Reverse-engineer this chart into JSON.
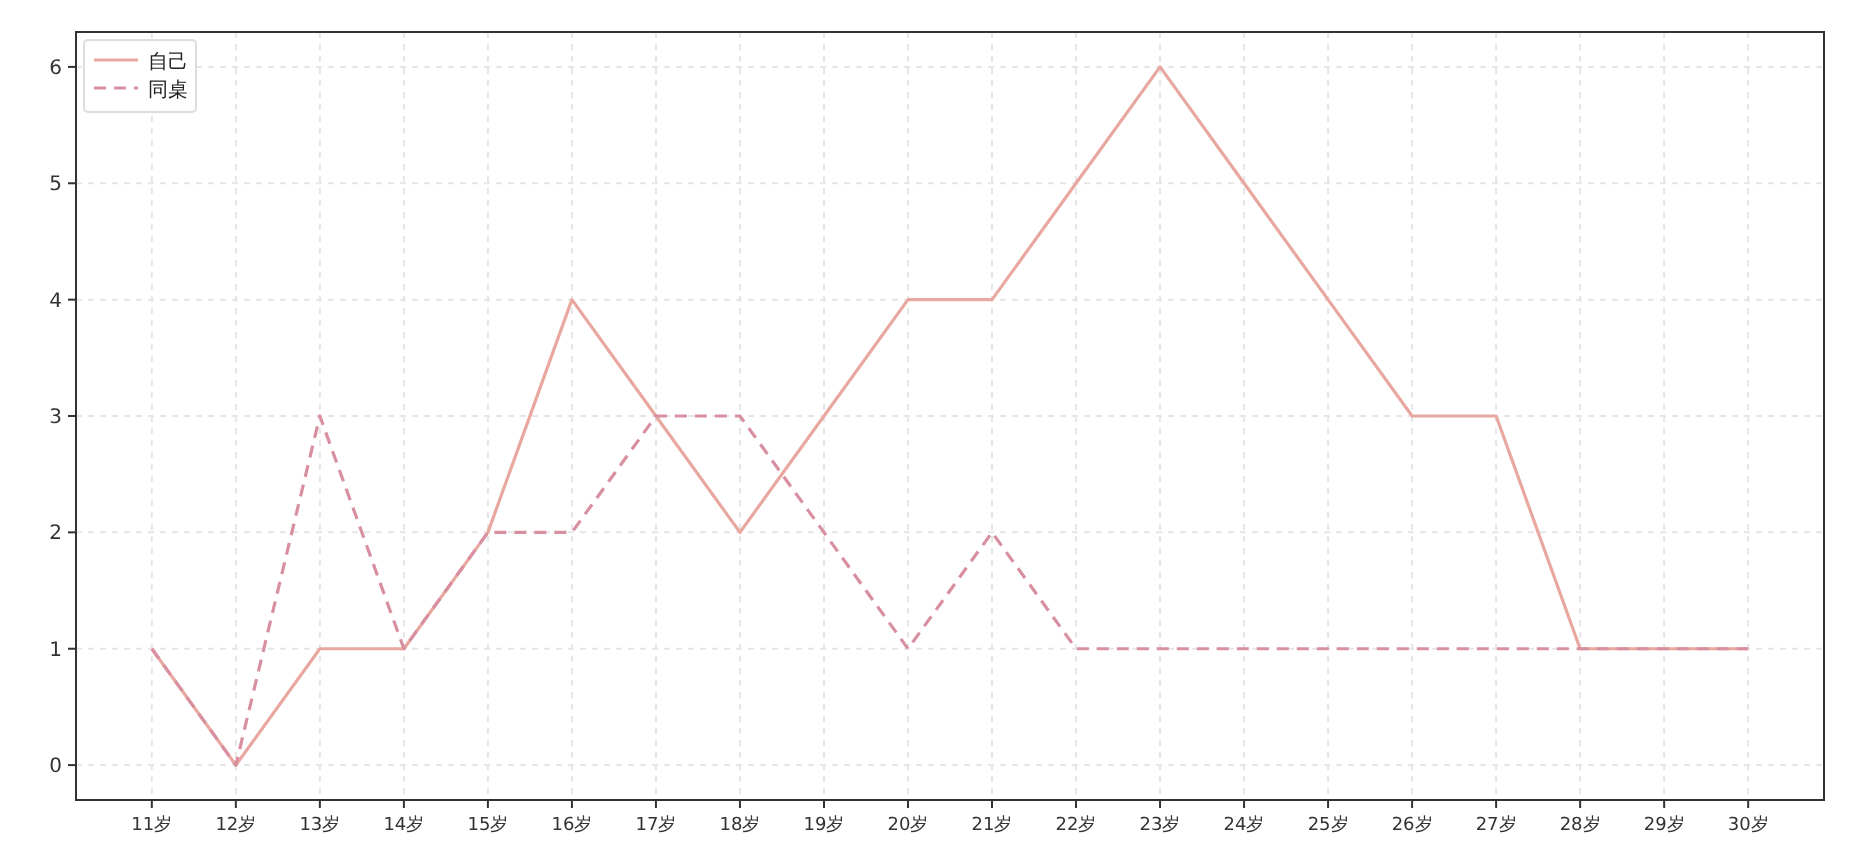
{
  "chart_data": {
    "type": "line",
    "categories": [
      "11岁",
      "12岁",
      "13岁",
      "14岁",
      "15岁",
      "16岁",
      "17岁",
      "18岁",
      "19岁",
      "20岁",
      "21岁",
      "22岁",
      "23岁",
      "24岁",
      "25岁",
      "26岁",
      "27岁",
      "28岁",
      "29岁",
      "30岁"
    ],
    "series": [
      {
        "name": "自己",
        "color": "#e8a8a0",
        "line_style": "solid",
        "values": [
          1,
          0,
          1,
          1,
          2,
          4,
          3,
          2,
          3,
          4,
          4,
          5,
          6,
          5,
          4,
          3,
          3,
          1,
          1,
          1
        ]
      },
      {
        "name": "同桌",
        "color": "#d890a0",
        "line_style": "dashed",
        "values": [
          1,
          0,
          3,
          1,
          2,
          2,
          3,
          3,
          2,
          1,
          2,
          1,
          1,
          1,
          1,
          1,
          1,
          1,
          1,
          1
        ]
      }
    ],
    "ylim": [
      -0.3,
      6.3
    ],
    "yticks": [
      0,
      1,
      2,
      3,
      4,
      5,
      6
    ],
    "grid": true,
    "legend": "top left",
    "marker": "none"
  }
}
